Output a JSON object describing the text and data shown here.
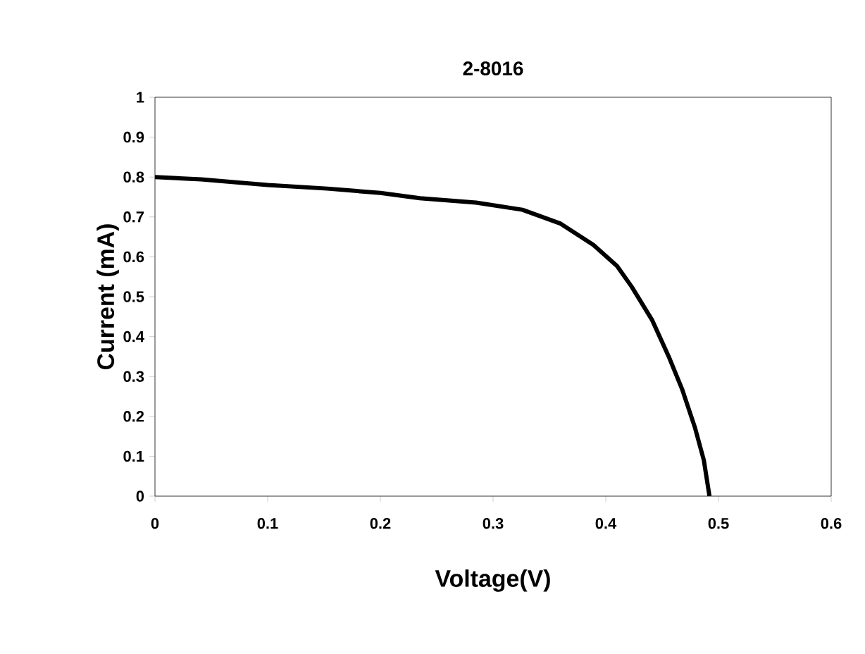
{
  "chart_data": {
    "type": "line",
    "title": "2-8016",
    "xlabel": "Voltage(V)",
    "ylabel": "Current (mA)",
    "xlim": [
      0,
      0.6
    ],
    "xticks": [
      0,
      0.1,
      0.2,
      0.3,
      0.4,
      0.5,
      0.6
    ],
    "ylim": [
      0,
      1
    ],
    "yticks": [
      0,
      0.1,
      0.2,
      0.3,
      0.4,
      0.5,
      0.6,
      0.7,
      0.8,
      0.9,
      1
    ],
    "grid": false,
    "legend": false,
    "marker": "none",
    "line_style": "solid",
    "series": [
      {
        "color": "#000000",
        "x": [
          0,
          0.041,
          0.1,
          0.153,
          0.2,
          0.235,
          0.285,
          0.326,
          0.36,
          0.389,
          0.41,
          0.423,
          0.441,
          0.456,
          0.468,
          0.479,
          0.487,
          0.492
        ],
        "values": [
          0.8,
          0.794,
          0.78,
          0.771,
          0.76,
          0.747,
          0.736,
          0.718,
          0.683,
          0.63,
          0.577,
          0.525,
          0.442,
          0.349,
          0.266,
          0.173,
          0.09,
          0
        ]
      }
    ]
  }
}
